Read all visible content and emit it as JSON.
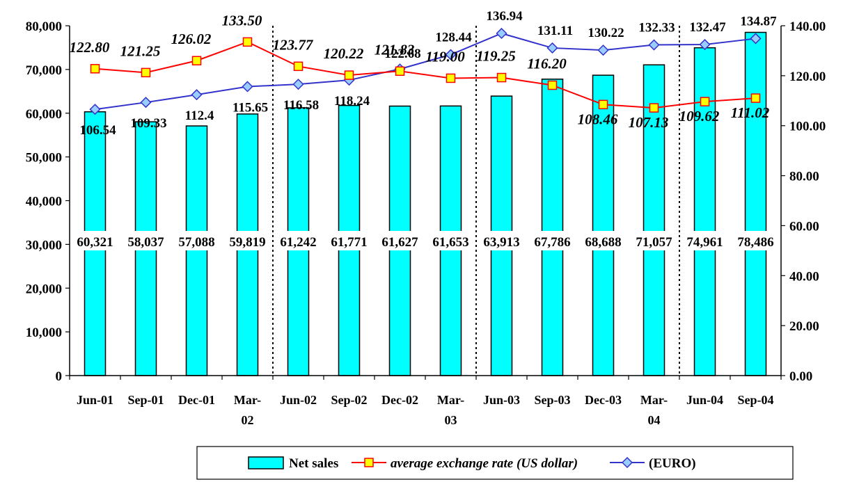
{
  "chart_data": {
    "type": "bar+line",
    "categories": [
      "Jun-01",
      "Sep-01",
      "Dec-01",
      "Mar-02",
      "Jun-02",
      "Sep-02",
      "Dec-02",
      "Mar-03",
      "Jun-03",
      "Sep-03",
      "Dec-03",
      "Mar-04",
      "Jun-04",
      "Sep-04"
    ],
    "category_lines": [
      [
        "Jun-01"
      ],
      [
        "Sep-01"
      ],
      [
        "Dec-01"
      ],
      [
        "Mar-",
        "02"
      ],
      [
        "Jun-02"
      ],
      [
        "Sep-02"
      ],
      [
        "Dec-02"
      ],
      [
        "Mar-",
        "03"
      ],
      [
        "Jun-03"
      ],
      [
        "Sep-03"
      ],
      [
        "Dec-03"
      ],
      [
        "Mar-",
        "04"
      ],
      [
        "Jun-04"
      ],
      [
        "Sep-04"
      ]
    ],
    "series": [
      {
        "name": "Net sales",
        "kind": "bar",
        "axis": "left",
        "color": "#00FFFF",
        "values": [
          60321,
          58037,
          57088,
          59819,
          61242,
          61771,
          61627,
          61653,
          63913,
          67786,
          68688,
          71057,
          74961,
          78486
        ],
        "labels": [
          "60,321",
          "58,037",
          "57,088",
          "59,819",
          "61,242",
          "61,771",
          "61,627",
          "61,653",
          "63,913",
          "67,786",
          "68,688",
          "71,057",
          "74,961",
          "78,486"
        ]
      },
      {
        "name": "average exchange rate (US dollar)",
        "kind": "line",
        "axis": "right",
        "color": "#FF0000",
        "marker_fill": "#FFFF00",
        "values": [
          122.8,
          121.25,
          126.02,
          133.5,
          123.77,
          120.22,
          121.83,
          119.0,
          119.25,
          116.2,
          108.46,
          107.13,
          109.62,
          111.02
        ],
        "labels": [
          "122.80",
          "121.25",
          "126.02",
          "133.50",
          "123.77",
          "120.22",
          "121.83",
          "119.00",
          "119.25",
          "116.20",
          "108.46",
          "107.13",
          "109.62",
          "111.02"
        ]
      },
      {
        "name": "(EURO)",
        "kind": "line",
        "axis": "right",
        "color": "#3333CC",
        "marker_fill": "#99CCFF",
        "values": [
          106.54,
          109.33,
          112.4,
          115.65,
          116.58,
          118.24,
          122.68,
          128.44,
          136.94,
          131.11,
          130.22,
          132.33,
          132.47,
          134.87
        ],
        "labels": [
          "106.54",
          "109.33",
          "112.4",
          "115.65",
          "116.58",
          "118.24",
          "122.68",
          "128.44",
          "136.94",
          "131.11",
          "130.22",
          "132.33",
          "132.47",
          "134.87"
        ]
      }
    ],
    "y_left": {
      "range": [
        0,
        80000
      ],
      "ticks": [
        0,
        10000,
        20000,
        30000,
        40000,
        50000,
        60000,
        70000,
        80000
      ],
      "tick_labels": [
        "0",
        "10,000",
        "20,000",
        "30,000",
        "40,000",
        "50,000",
        "60,000",
        "70,000",
        "80,000"
      ]
    },
    "y_right": {
      "range": [
        0,
        140
      ],
      "ticks": [
        0,
        20,
        40,
        60,
        80,
        100,
        120,
        140
      ],
      "tick_labels": [
        "0.00",
        "20.00",
        "40.00",
        "60.00",
        "80.00",
        "100.00",
        "120.00",
        "140.00"
      ]
    },
    "fiscal_dividers_after": [
      "Mar-02",
      "Mar-03",
      "Mar-04"
    ],
    "grid": false,
    "legend_position": "bottom-right"
  }
}
